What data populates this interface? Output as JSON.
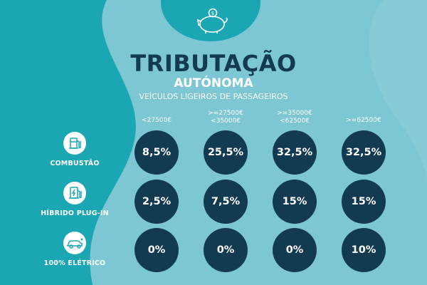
{
  "title": "TRIBUTAÇÃO",
  "subtitle": "AUTÓNOMA",
  "subtitle2": "VEÍCULOS LIGEIROS DE PASSAGEIROS",
  "columns": [
    {
      "line1": "<27500€",
      "line2": ""
    },
    {
      "line1": ">=27500€",
      "line2": "<35000€"
    },
    {
      "line1": ">=35000€",
      "line2": "<62500€"
    },
    {
      "line1": ">=62500€",
      "line2": ""
    }
  ],
  "rows": [
    {
      "label": "COMBUSTÃO",
      "icon": "fuel-pump-icon",
      "values": [
        "8,5%",
        "25,5%",
        "32,5%",
        "32,5%"
      ]
    },
    {
      "label": "HÍBRIDO PLUG-IN",
      "icon": "charging-station-icon",
      "values": [
        "2,5%",
        "7,5%",
        "15%",
        "15%"
      ]
    },
    {
      "label": "100% ELÉTRICO",
      "icon": "electric-car-icon",
      "values": [
        "0%",
        "0%",
        "0%",
        "10%"
      ]
    }
  ],
  "colors": {
    "background_light": "#7cc7d3",
    "background_dark": "#1aa6b2",
    "circle": "#123a50",
    "text_light": "#ffffff"
  }
}
